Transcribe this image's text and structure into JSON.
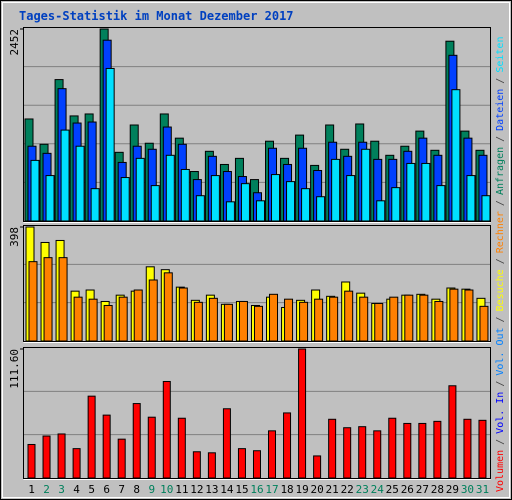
{
  "chart_data": {
    "type": "bar",
    "title": "Tages-Statistik im Monat Dezember 2017",
    "categories": [
      "1",
      "2",
      "3",
      "4",
      "5",
      "6",
      "7",
      "8",
      "9",
      "10",
      "11",
      "12",
      "13",
      "14",
      "15",
      "16",
      "17",
      "18",
      "19",
      "20",
      "21",
      "22",
      "23",
      "24",
      "25",
      "26",
      "27",
      "28",
      "29",
      "30",
      "31"
    ],
    "category_colors": [
      "#000000",
      "#00805c",
      "#00805c",
      "#000000",
      "#000000",
      "#000000",
      "#000000",
      "#000000",
      "#00805c",
      "#00805c",
      "#000000",
      "#000000",
      "#000000",
      "#000000",
      "#000000",
      "#00805c",
      "#00805c",
      "#000000",
      "#000000",
      "#000000",
      "#000000",
      "#000000",
      "#00805c",
      "#00805c",
      "#000000",
      "#000000",
      "#000000",
      "#000000",
      "#000000",
      "#00805c",
      "#00805c"
    ],
    "legend_separator": "/",
    "panels": [
      {
        "ylim": [
          0,
          2452
        ],
        "yticks": [
          2452
        ],
        "series": [
          {
            "name": "Anfragen",
            "color": "#00805c",
            "values": [
              1303,
              980,
              1806,
              1342,
              1367,
              2452,
              877,
              1226,
              993,
              1367,
              1058,
              632,
              890,
              722,
              800,
              529,
              1019,
              800,
              1097,
              710,
              1226,
              916,
              1239,
              1019,
              839,
              955,
              1148,
              903,
              2296,
              1148,
              903
            ]
          },
          {
            "name": "Dateien",
            "color": "#0040ff",
            "values": [
              955,
              864,
              1690,
              1251,
              1264,
              2309,
              748,
              955,
              916,
              1200,
              980,
              529,
              826,
              632,
              568,
              361,
              929,
              722,
              929,
              645,
              1006,
              826,
              1006,
              787,
              787,
              890,
              1058,
              839,
              2116,
              1058,
              839
            ]
          },
          {
            "name": "Seiten",
            "color": "#00e0ff",
            "values": [
              774,
              580,
              1161,
              955,
              413,
              1948,
              555,
              800,
              452,
              839,
              658,
              323,
              580,
              245,
              477,
              258,
              593,
              503,
              413,
              310,
              787,
              580,
              916,
              258,
              426,
              735,
              735,
              452,
              1677,
              580,
              323
            ]
          }
        ]
      },
      {
        "ylim": [
          0,
          398
        ],
        "yticks": [
          398
        ],
        "series": [
          {
            "name": "Besuche",
            "color": "#ffff00",
            "values": [
              398,
              344,
              351,
              174,
              178,
              138,
              160,
              174,
              259,
              249,
              188,
              142,
              160,
              128,
              138,
              124,
              153,
              117,
              142,
              178,
              156,
              206,
              167,
              131,
              146,
              160,
              163,
              146,
              185,
              181,
              149
            ]
          },
          {
            "name": "Rechner",
            "color": "#ff8000",
            "values": [
              277,
              291,
              291,
              153,
              146,
              124,
              153,
              178,
              213,
              238,
              185,
              135,
              149,
              128,
              138,
              121,
              163,
              146,
              135,
              146,
              153,
              174,
              153,
              131,
              153,
              160,
              160,
              138,
              181,
              178,
              121
            ]
          }
        ]
      },
      {
        "ylim": [
          0,
          111.6
        ],
        "yticks": [
          {
            "value": 111.6,
            "label": "111.60"
          }
        ],
        "series": [
          {
            "name": "Volumen",
            "color": "#ff0000",
            "values": [
              29.0,
              36.3,
              38.1,
              25.4,
              70.8,
              54.4,
              33.6,
              64.4,
              52.6,
              83.5,
              51.7,
              22.7,
              21.8,
              59.9,
              25.4,
              23.6,
              40.8,
              56.3,
              111.6,
              19.1,
              50.8,
              43.5,
              44.4,
              40.8,
              51.7,
              47.2,
              47.2,
              49.0,
              79.8,
              50.8,
              49.9
            ]
          }
        ],
        "legend_only": [
          {
            "name": "Vol. In",
            "color": "#0000ff"
          },
          {
            "name": "Vol. Out",
            "color": "#0080ff"
          }
        ]
      }
    ]
  }
}
